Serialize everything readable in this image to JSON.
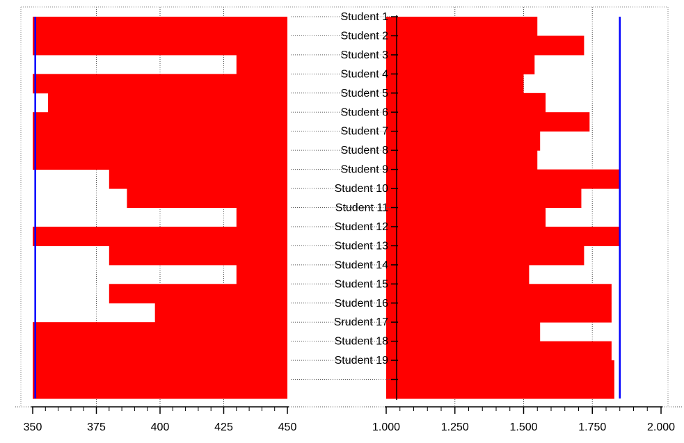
{
  "chart_data": {
    "type": "bar",
    "orientation": "horizontal",
    "categories": [
      "Student 1",
      "Student 2",
      "Student 3",
      "Student 4",
      "Student 5",
      "Student 6",
      "Student 7",
      "Student 8",
      "Student 9",
      "Student 10",
      "Student 11",
      "Student 12",
      "Student 13",
      "Student 14",
      "Student 15",
      "Student 16",
      "Srudent 17",
      "Student 18",
      "Student 19",
      ""
    ],
    "grid": true,
    "bar_color": "#ff0000",
    "reference_color": "#0000ff",
    "panels": [
      {
        "side": "left",
        "direction": "right-to-left",
        "xlim": [
          350,
          450
        ],
        "ticks": [
          350,
          375,
          400,
          425,
          450
        ],
        "tick_labels": [
          "350",
          "375",
          "400",
          "425",
          "450"
        ],
        "values": [
          350,
          350,
          430,
          350,
          356,
          350,
          350,
          350,
          380,
          387,
          430,
          350,
          380,
          430,
          380,
          398,
          350,
          350,
          350,
          350
        ],
        "reference_line": 351
      },
      {
        "side": "right",
        "direction": "left-to-right",
        "xlim": [
          1.0,
          2.0
        ],
        "ticks": [
          1.0,
          1.25,
          1.5,
          1.75,
          2.0
        ],
        "tick_labels": [
          "1.000",
          "1.250",
          "1.500",
          "1.750",
          "2.000"
        ],
        "values": [
          1.55,
          1.72,
          1.54,
          1.5,
          1.58,
          1.74,
          1.56,
          1.55,
          1.85,
          1.71,
          1.58,
          1.85,
          1.72,
          1.52,
          1.82,
          1.82,
          1.56,
          1.82,
          1.83,
          1.83
        ],
        "reference_line": 1.85
      }
    ]
  }
}
